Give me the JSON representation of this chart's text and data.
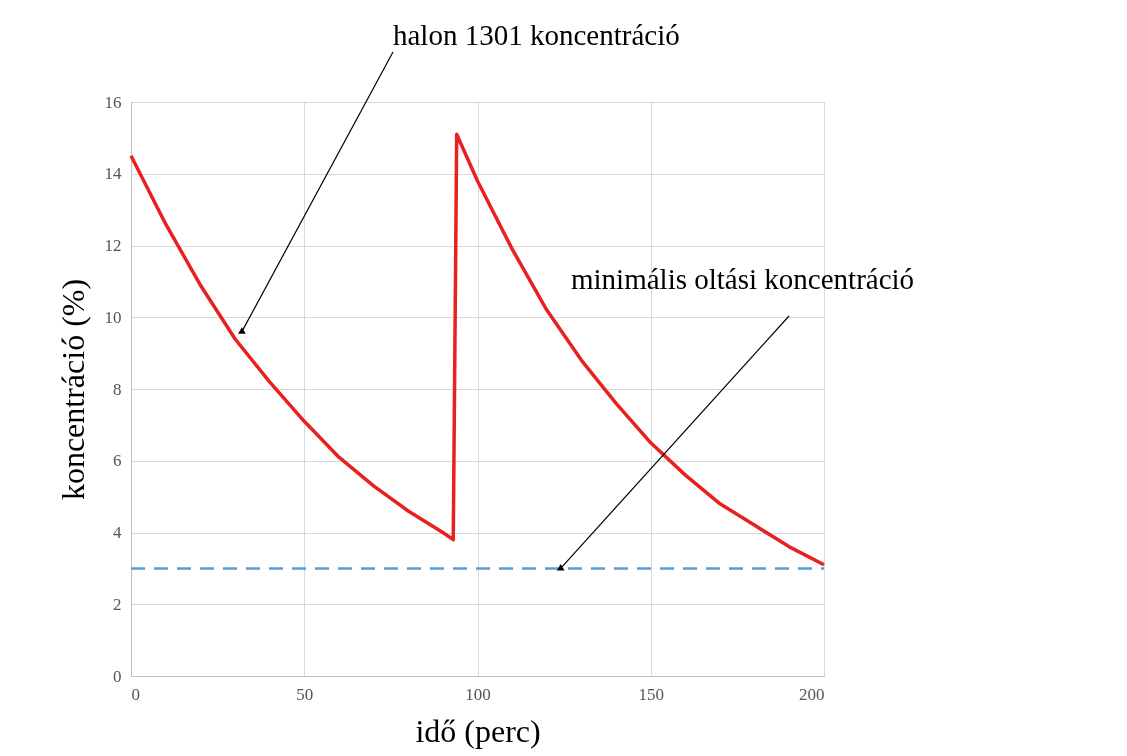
{
  "chart_data": {
    "type": "line",
    "xlabel": "idő (perc)",
    "ylabel": "koncentráció (%)",
    "series": [
      {
        "color": "#e8201f",
        "x": [
          0,
          10,
          20,
          30,
          40,
          50,
          60,
          70,
          80,
          90,
          93,
          94,
          100,
          110,
          120,
          130,
          140,
          150,
          160,
          170,
          180,
          190,
          200
        ],
        "values": [
          14.5,
          12.6,
          10.9,
          9.4,
          8.2,
          7.1,
          6.1,
          5.3,
          4.6,
          4.0,
          3.8,
          15.1,
          13.8,
          11.9,
          10.2,
          8.8,
          7.6,
          6.5,
          5.6,
          4.8,
          4.2,
          3.6,
          3.1
        ]
      }
    ],
    "xlim": [
      0,
      200
    ],
    "xticks": [
      0,
      50,
      100,
      150,
      200
    ],
    "ylim": [
      0,
      16
    ],
    "yticks": [
      0,
      2,
      4,
      6,
      8,
      10,
      12,
      14,
      16
    ],
    "ref_lines": [
      {
        "axis": "y",
        "value": 3,
        "color": "#5b9bd5",
        "line_style": "dashed"
      }
    ],
    "annotations": [
      {
        "text": "halon 1301 koncentráció",
        "x": 32,
        "y": 9.6
      },
      {
        "text": "minimális oltási koncentráció",
        "x": 124,
        "y": 3
      }
    ],
    "grid": true,
    "marker": "none",
    "line_style": "solid"
  }
}
